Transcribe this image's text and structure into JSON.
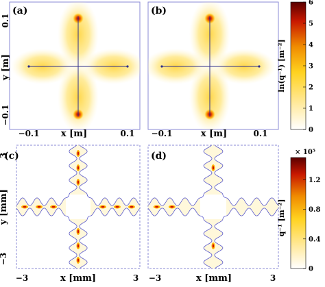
{
  "chart_data": [
    {
      "panel": "(a)",
      "type": "heatmap",
      "xlabel": "x [m]",
      "ylabel": "y [m]",
      "xticks": [
        "−0.1",
        "0.1"
      ],
      "yticks": [
        "0.1",
        "−0.1"
      ],
      "xlim": [
        -0.1,
        0.1
      ],
      "ylim": [
        -0.1,
        0.1
      ],
      "lobes": [
        "top",
        "bottom",
        "left",
        "right"
      ],
      "peaks": [
        {
          "x": 0.0,
          "y": 0.09
        },
        {
          "x": 0.0,
          "y": -0.09
        }
      ]
    },
    {
      "panel": "(b)",
      "type": "heatmap",
      "xlabel": "x [m]",
      "xticks": [
        "−0.1",
        "0.1"
      ],
      "xlim": [
        -0.1,
        0.1
      ],
      "ylim": [
        -0.1,
        0.1
      ],
      "lobes": [
        "top",
        "bottom",
        "left",
        "right"
      ],
      "peaks": [
        {
          "x": 0.0,
          "y": 0.09
        },
        {
          "x": 0.0,
          "y": -0.09
        }
      ]
    },
    {
      "panel": "(c)",
      "type": "heatmap",
      "xlabel": "x [mm]",
      "ylabel": "y [mm]",
      "xticks": [
        "−3",
        "3"
      ],
      "yticks": [
        "3",
        "−3"
      ],
      "xlim": [
        -3,
        3
      ],
      "ylim": [
        -3,
        3
      ],
      "arm_half_width_mm": 0.25,
      "junction_half_width_mm": 0.6,
      "wave_period_mm": 0.7,
      "hotspots_mm": [
        {
          "x": -2.6,
          "y": 0
        },
        {
          "x": -1.9,
          "y": 0
        },
        {
          "x": -1.2,
          "y": 0
        },
        {
          "x": 1.2,
          "y": 0
        },
        {
          "x": 1.9,
          "y": 0
        },
        {
          "x": 2.6,
          "y": 0
        },
        {
          "x": 0,
          "y": 2.6
        },
        {
          "x": 0,
          "y": 1.9
        },
        {
          "x": 0,
          "y": 1.2
        },
        {
          "x": 0,
          "y": -1.2
        },
        {
          "x": 0,
          "y": -1.9
        },
        {
          "x": 0,
          "y": -2.6
        }
      ]
    },
    {
      "panel": "(d)",
      "type": "heatmap",
      "xlabel": "x [mm]",
      "xticks": [
        "−3",
        "3"
      ],
      "xlim": [
        -3,
        3
      ],
      "ylim": [
        -3,
        3
      ],
      "arm_half_width_mm": 0.25,
      "junction_half_width_mm": 0.6,
      "wave_period_mm": 0.7,
      "hotspots_mm": [
        {
          "x": -2.6,
          "y": 0
        },
        {
          "x": -1.9,
          "y": 0
        },
        {
          "x": 0,
          "y": 1.9
        },
        {
          "x": 0,
          "y": -1.9
        }
      ]
    }
  ],
  "colorbars": [
    {
      "label": "ln(q⁻¹) [m⁻²]",
      "ticks": [
        "0",
        "1",
        "2",
        "3",
        "4",
        "5",
        "6"
      ],
      "range": [
        0,
        6
      ]
    },
    {
      "label": "q⁻¹ [m⁻²]",
      "multiplier": "× 10⁵",
      "ticks": [
        "0",
        "0.4",
        "0.8",
        "1.2"
      ],
      "range": [
        0,
        1.5
      ]
    }
  ],
  "colors": {
    "frame": "#8a8ad6",
    "line": "#2c2c8a",
    "glow": "#ffe066",
    "peak": "#b00000",
    "cmap": [
      "#ffffff",
      "#ffeaa0",
      "#ffd21f",
      "#f08c00",
      "#c81800",
      "#5a0000"
    ]
  }
}
